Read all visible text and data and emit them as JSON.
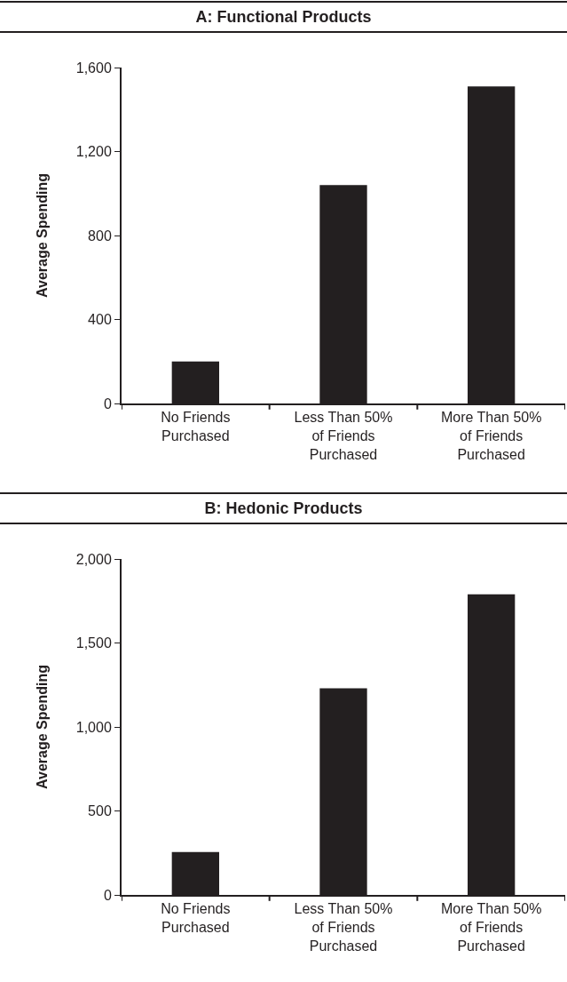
{
  "chart_data": [
    {
      "type": "bar",
      "title": "A: Functional Products",
      "ylabel": "Average Spending",
      "categories": [
        "No Friends\nPurchased",
        "Less Than 50%\nof Friends\nPurchased",
        "More Than 50%\nof Friends\nPurchased"
      ],
      "values": [
        200,
        1040,
        1510
      ],
      "color": "#231f20",
      "ylim": [
        0,
        1600
      ],
      "yticks": [
        0,
        400,
        800,
        {
          "value": 1200,
          "label": "1,200"
        },
        {
          "value": 1600,
          "label": "1,600"
        }
      ]
    },
    {
      "type": "bar",
      "title": "B: Hedonic Products",
      "ylabel": "Average Spending",
      "categories": [
        "No Friends\nPurchased",
        "Less Than 50%\nof Friends\nPurchased",
        "More Than 50%\nof Friends\nPurchased"
      ],
      "values": [
        255,
        1230,
        1790
      ],
      "color": "#231f20",
      "ylim": [
        0,
        2000
      ],
      "yticks": [
        0,
        500,
        {
          "value": 1000,
          "label": "1,000"
        },
        {
          "value": 1500,
          "label": "1,500"
        },
        {
          "value": 2000,
          "label": "2,000"
        }
      ]
    }
  ]
}
